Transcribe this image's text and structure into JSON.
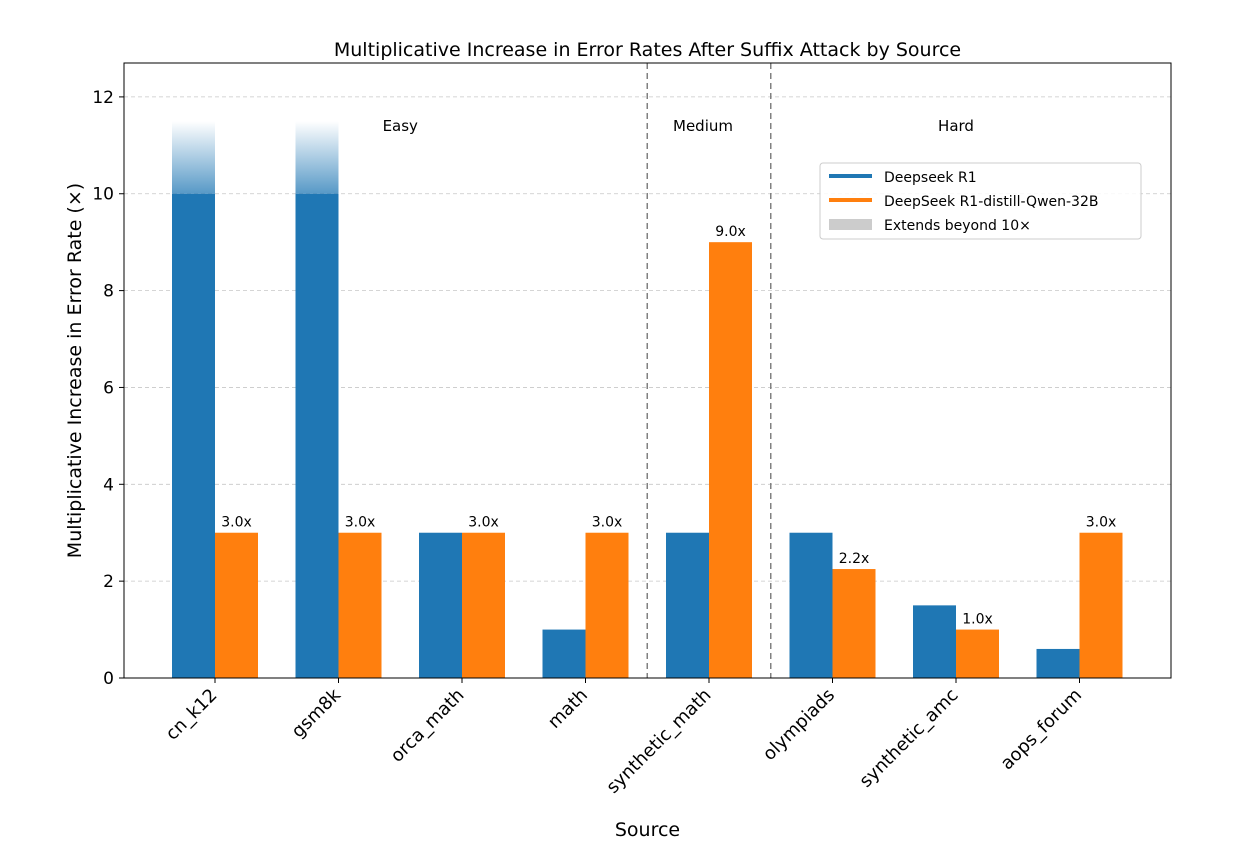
{
  "chart_data": {
    "type": "bar",
    "title": "Multiplicative Increase in Error Rates After Suffix Attack by Source",
    "xlabel": "Source",
    "ylabel": "Multiplicative Increase in Error Rate (×)",
    "ylim": [
      0,
      12.7
    ],
    "yticks": [
      0,
      2,
      4,
      6,
      8,
      10,
      12
    ],
    "grid": true,
    "legend_position": "upper-right",
    "categories": [
      "cn_k12",
      "gsm8k",
      "orca_math",
      "math",
      "synthetic_math",
      "olympiads",
      "synthetic_amc",
      "aops_forum"
    ],
    "cap": 10,
    "series": [
      {
        "name": "Deepseek R1",
        "color": "#1f77b4",
        "values": [
          10,
          10,
          3,
          1,
          3,
          3,
          1.5,
          0.6
        ],
        "extends_beyond_cap": [
          true,
          true,
          false,
          false,
          false,
          false,
          false,
          false
        ]
      },
      {
        "name": "DeepSeek R1-distill-Qwen-32B",
        "color": "#ff7f0e",
        "values": [
          3,
          3,
          3,
          3,
          9,
          2.25,
          1,
          3
        ],
        "value_labels": [
          "3.0x",
          "3.0x",
          "3.0x",
          "3.0x",
          "9.0x",
          "2.2x",
          "1.0x",
          "3.0x"
        ]
      }
    ],
    "legend_extra": {
      "label": "Extends beyond 10×",
      "color": "#cccccc"
    },
    "groups": [
      {
        "label": "Easy",
        "from": 0,
        "to": 3
      },
      {
        "label": "Medium",
        "from": 4,
        "to": 4
      },
      {
        "label": "Hard",
        "from": 5,
        "to": 7
      }
    ]
  }
}
